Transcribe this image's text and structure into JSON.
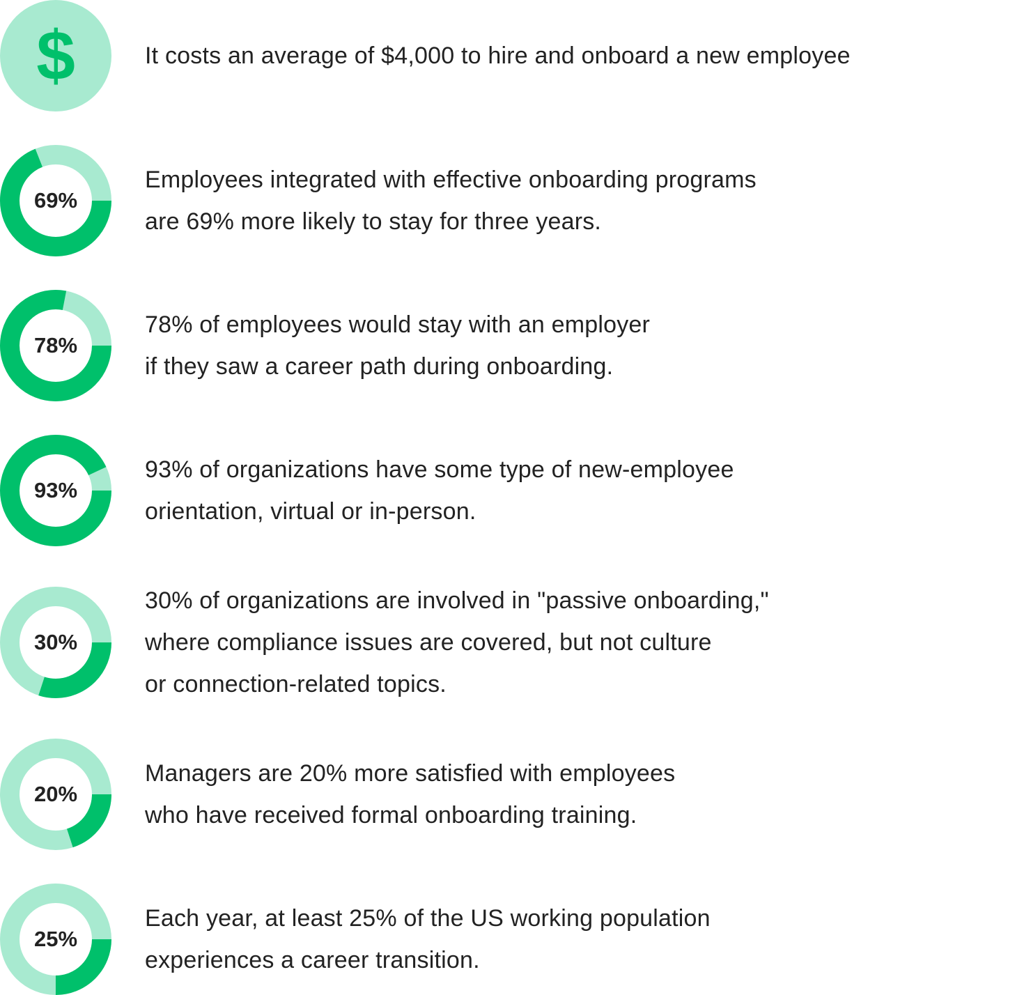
{
  "colors": {
    "accent": "#00c06b",
    "accent_light": "#a8ead0",
    "text": "#222222"
  },
  "cost": {
    "icon": "dollar-sign-icon",
    "symbol": "$",
    "lines": [
      "It costs an average of $4,000 to hire and onboard a new employee"
    ]
  },
  "stats": [
    {
      "value": 69,
      "label": "69%",
      "lines": [
        "Employees integrated with effective onboarding programs",
        "are 69% more likely to stay for three years."
      ]
    },
    {
      "value": 78,
      "label": "78%",
      "lines": [
        "78% of employees would stay with an employer",
        "if they saw a career path during onboarding."
      ]
    },
    {
      "value": 93,
      "label": "93%",
      "lines": [
        "93% of organizations have some type of new-employee",
        "orientation, virtual or in-person."
      ]
    },
    {
      "value": 30,
      "label": "30%",
      "lines": [
        "30% of organizations are involved in \"passive onboarding,\"",
        "where compliance issues are covered, but not culture",
        "or connection-related topics."
      ]
    },
    {
      "value": 20,
      "label": "20%",
      "lines": [
        "Managers are 20% more satisfied with employees",
        "who have received formal onboarding training."
      ]
    },
    {
      "value": 25,
      "label": "25%",
      "lines": [
        "Each year, at least 25% of the US working population",
        "experiences a career transition."
      ]
    }
  ]
}
